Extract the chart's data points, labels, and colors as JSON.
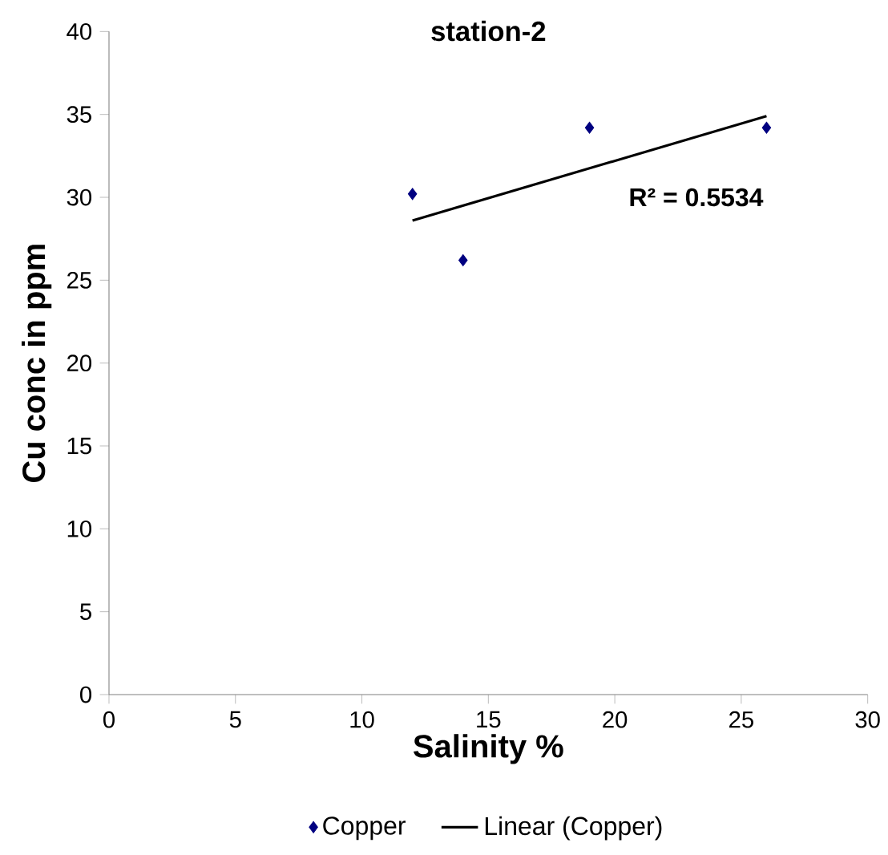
{
  "chart_data": {
    "type": "scatter",
    "title": "station-2",
    "xlabel": "Salinity %",
    "ylabel": "Cu conc in ppm",
    "xlim": [
      0,
      30
    ],
    "xticks": [
      0,
      5,
      10,
      15,
      20,
      25,
      30
    ],
    "ylim": [
      0,
      40
    ],
    "yticks": [
      0,
      5,
      10,
      15,
      20,
      25,
      30,
      35,
      40
    ],
    "grid": false,
    "legend": "bottom",
    "annotations": [
      "R² = 0.5534"
    ],
    "series": [
      {
        "name": "Copper",
        "marker": "diamond",
        "color": "#000080",
        "x": [
          12,
          14,
          19,
          26
        ],
        "values": [
          30.2,
          26.2,
          34.2,
          34.2
        ]
      },
      {
        "name": "Linear (Copper)",
        "type": "line",
        "color": "#000000",
        "line_style": "solid",
        "x": [
          12,
          26
        ],
        "values": [
          28.6,
          34.9
        ]
      }
    ]
  }
}
